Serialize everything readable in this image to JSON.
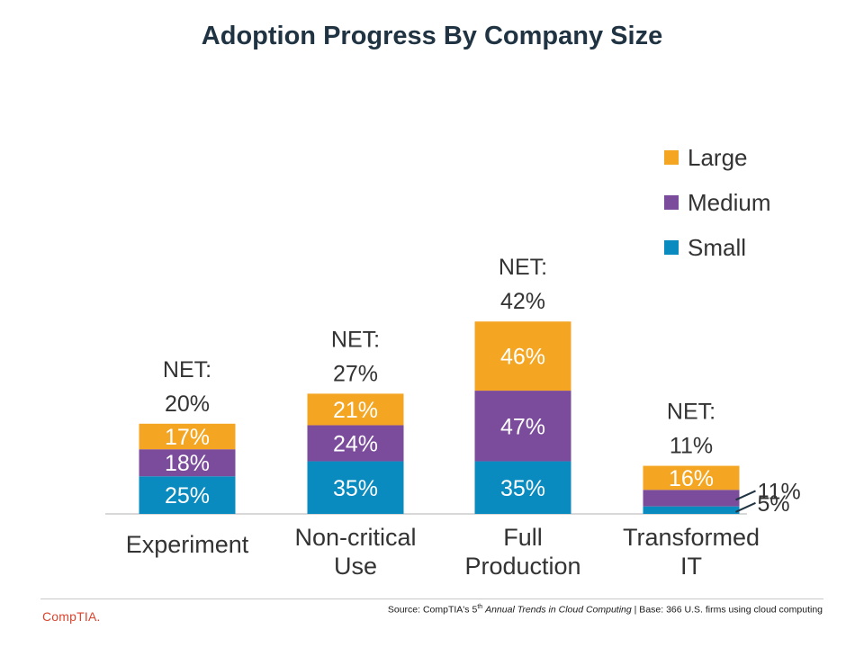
{
  "chart_data": {
    "type": "bar",
    "stacked": true,
    "title": "Adoption Progress By Company Size",
    "categories": [
      "Experiment",
      "Non-critical Use",
      "Full Production",
      "Transformed IT"
    ],
    "category_lines": [
      [
        "Experiment"
      ],
      [
        "Non-critical",
        "Use"
      ],
      [
        "Full",
        "Production"
      ],
      [
        "Transformed",
        "IT"
      ]
    ],
    "series": [
      {
        "name": "Small",
        "color": "#0a8bbf",
        "values": [
          25,
          35,
          35,
          5
        ],
        "labels": [
          "25%",
          "35%",
          "35%",
          "5%"
        ]
      },
      {
        "name": "Medium",
        "color": "#7b4c9c",
        "values": [
          18,
          24,
          47,
          11
        ],
        "labels": [
          "18%",
          "24%",
          "47%",
          "11%"
        ]
      },
      {
        "name": "Large",
        "color": "#f4a623",
        "values": [
          17,
          21,
          46,
          16
        ],
        "labels": [
          "17%",
          "21%",
          "46%",
          "16%"
        ]
      }
    ],
    "net": [
      {
        "label": "NET:",
        "value": "20%"
      },
      {
        "label": "NET:",
        "value": "27%"
      },
      {
        "label": "NET:",
        "value": "42%"
      },
      {
        "label": "NET:",
        "value": "11%"
      }
    ],
    "ylim": [
      0,
      130
    ],
    "legend_position": "right",
    "legend_order": [
      "Large",
      "Medium",
      "Small"
    ],
    "xlabel": "",
    "ylabel": ""
  },
  "footer": {
    "logo": "CompTIA.",
    "source_prefix": "Source: CompTIA's 5",
    "source_sup": "th",
    "source_title": "Annual Trends in Cloud Computing",
    "source_suffix": " | Base: 366 U.S. firms using cloud computing"
  }
}
